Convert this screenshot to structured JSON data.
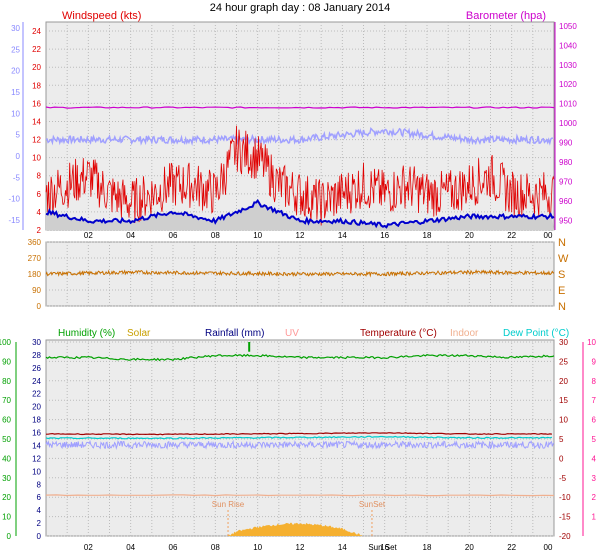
{
  "title": "24 hour graph day : 08 January 2014",
  "colors": {
    "wind": "#e00000",
    "baro": "#cc00cc",
    "gust_axis": "#8888ff",
    "dir": "#c87000",
    "humidity": "#00a000",
    "solar": "#c8a000",
    "rain": "#000080",
    "uv": "#ff9999",
    "temperature": "#a00000",
    "indoor": "#f0b090",
    "dewpoint": "#00cccc",
    "temp_axis": "#ff1493",
    "avg_wind": "#0000cc",
    "avg_temp": "#a0a0ff"
  },
  "chart_data": [
    {
      "type": "line",
      "name": "wind-barometer",
      "ylabel": "Windspeed (kts)",
      "ylabel_right": "Barometer (hpa)",
      "ylim": [
        2,
        25
      ],
      "ylim_right": [
        945,
        1052
      ],
      "y_ticks": [
        "2",
        "4",
        "6",
        "8",
        "10",
        "12",
        "14",
        "16",
        "18",
        "20",
        "22",
        "24"
      ],
      "y_ticks_right": [
        "950",
        "960",
        "970",
        "980",
        "990",
        "1000",
        "1010",
        "1020",
        "1030",
        "1040",
        "1050"
      ],
      "y_ticks_far_left": [
        "-15",
        "-10",
        "-5",
        "0",
        "5",
        "10",
        "15",
        "20",
        "25",
        "30"
      ],
      "x_ticks": [
        "02",
        "04",
        "06",
        "08",
        "10",
        "12",
        "14",
        "16",
        "18",
        "20",
        "22",
        "00"
      ],
      "grid": true,
      "series": [
        {
          "values_desc": "windspeed",
          "x": [
            0,
            1,
            2,
            3,
            4,
            5,
            6,
            7,
            8,
            9,
            10,
            11,
            12,
            13,
            14,
            15,
            16,
            17,
            18,
            19,
            20,
            21,
            22,
            23,
            24
          ],
          "y": [
            6,
            7,
            8,
            6,
            5,
            6,
            7,
            7,
            6,
            11,
            10,
            7,
            6,
            5,
            6,
            7,
            6,
            7,
            6,
            6,
            7,
            8,
            6,
            6,
            6
          ]
        },
        {
          "values_desc": "barometer",
          "x": [
            0,
            4,
            8,
            12,
            16,
            20,
            24
          ],
          "y": [
            1008,
            1008,
            1008,
            1008,
            1008,
            1008,
            1008
          ]
        },
        {
          "values_desc": "wind-average",
          "x": [
            0,
            2,
            4,
            6,
            8,
            10,
            12,
            14,
            16,
            18,
            20,
            22,
            24
          ],
          "y": [
            4,
            3,
            3,
            4,
            3,
            5,
            3,
            3,
            2.5,
            3,
            3.5,
            3.5,
            3.5
          ]
        },
        {
          "values_desc": "temperature-overlay",
          "x": [
            0,
            4,
            8,
            12,
            16,
            20,
            24
          ],
          "y": [
            12,
            12,
            12,
            12,
            13,
            12,
            12
          ]
        }
      ]
    },
    {
      "type": "line",
      "name": "wind-direction",
      "ylim": [
        0,
        360
      ],
      "y_ticks": [
        "0",
        "90",
        "180",
        "270",
        "360"
      ],
      "dir_labels": [
        "N",
        "W",
        "S",
        "E",
        "N"
      ],
      "x": [
        0,
        4,
        8,
        12,
        16,
        20,
        24
      ],
      "y": [
        180,
        190,
        185,
        180,
        180,
        190,
        185
      ]
    },
    {
      "type": "line",
      "name": "humidity-temperature",
      "legend": [
        "Humidity (%)",
        "Solar",
        "Rainfall (mm)",
        "UV",
        "Temperature (°C)",
        "Indoor",
        "Dew Point (°C)"
      ],
      "y_ticks_humidity": [
        "0",
        "10",
        "20",
        "30",
        "40",
        "50",
        "60",
        "70",
        "80",
        "90",
        "100"
      ],
      "y_ticks_rain": [
        "0",
        "2",
        "4",
        "6",
        "8",
        "10",
        "12",
        "14",
        "16",
        "18",
        "20",
        "22",
        "24",
        "26",
        "28",
        "30"
      ],
      "y_ticks_temp_right": [
        "-20",
        "-15",
        "-10",
        "-5",
        "0",
        "5",
        "10",
        "15",
        "20",
        "25",
        "30"
      ],
      "y_ticks_far_right": [
        "1",
        "2",
        "3",
        "4",
        "5",
        "6",
        "7",
        "8",
        "9",
        "10"
      ],
      "x_ticks": [
        "02",
        "04",
        "06",
        "08",
        "10",
        "12",
        "14",
        "16",
        "18",
        "20",
        "22",
        "00"
      ],
      "sun_labels": [
        "Sun Rise",
        "SunSet",
        "Sun Set"
      ],
      "series": [
        {
          "values_desc": "humidity",
          "x": [
            0,
            2,
            4,
            6,
            8,
            10,
            12,
            14,
            16,
            18,
            20,
            22,
            24
          ],
          "y": [
            92,
            92,
            91,
            91,
            93,
            93,
            92,
            92,
            92,
            93,
            93,
            92,
            93
          ]
        },
        {
          "values_desc": "indoor",
          "x": [
            0,
            24
          ],
          "y": [
            21,
            21
          ]
        },
        {
          "values_desc": "temperature",
          "x": [
            0,
            6,
            12,
            16,
            20,
            24
          ],
          "y": [
            6.3,
            6.2,
            6.4,
            6.6,
            6.3,
            6.3
          ]
        },
        {
          "values_desc": "dewpoint",
          "x": [
            0,
            6,
            12,
            16,
            20,
            24
          ],
          "y": [
            5.2,
            5.2,
            5.4,
            5.6,
            5.3,
            5.3
          ]
        },
        {
          "values_desc": "solar",
          "x": [
            8.6,
            9,
            10,
            11,
            12,
            13,
            14,
            15
          ],
          "y": [
            0,
            0.5,
            1,
            1.3,
            1.4,
            1.2,
            0.8,
            0
          ]
        }
      ]
    }
  ]
}
